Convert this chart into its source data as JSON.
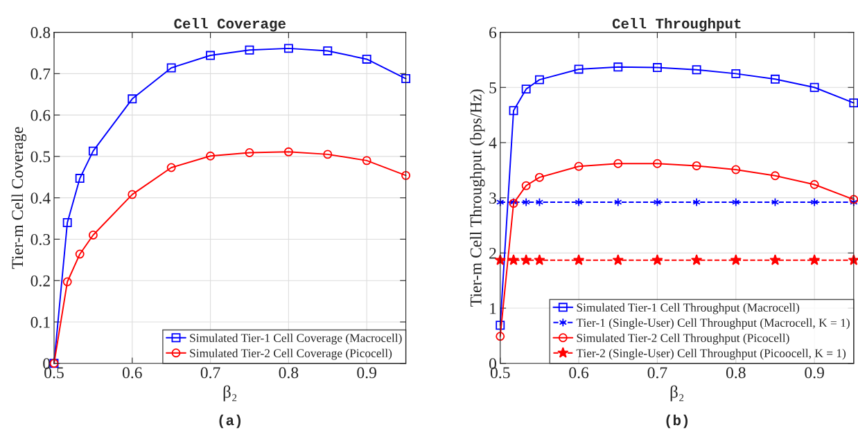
{
  "chart_data": [
    {
      "type": "line",
      "title": "Cell Coverage",
      "xlabel": "β₂",
      "ylabel": "Tier-m Cell Coverage",
      "annotations": [
        "(a)"
      ],
      "x": [
        0.5,
        0.517,
        0.533,
        0.55,
        0.6,
        0.65,
        0.7,
        0.75,
        0.8,
        0.85,
        0.9,
        0.95
      ],
      "series": [
        {
          "name": "Simulated Tier-1 Cell Coverage (Macrocell)",
          "color": "#0000ff",
          "marker": "square",
          "line_style": "solid",
          "values": [
            0,
            0.34,
            0.447,
            0.513,
            0.639,
            0.714,
            0.744,
            0.757,
            0.761,
            0.755,
            0.735,
            0.688
          ]
        },
        {
          "name": "Simulated Tier-2 Cell Coverage (Picocell)",
          "color": "#ff0000",
          "marker": "circle",
          "line_style": "solid",
          "values": [
            0,
            0.197,
            0.264,
            0.31,
            0.408,
            0.473,
            0.501,
            0.509,
            0.511,
            0.505,
            0.49,
            0.454
          ]
        }
      ],
      "xlim": [
        0.5,
        0.95
      ],
      "xticks": [
        0.5,
        0.6,
        0.7,
        0.8,
        0.9
      ],
      "ylim": [
        0,
        0.8
      ],
      "yticks": [
        0,
        0.1,
        0.2,
        0.3,
        0.4,
        0.5,
        0.6,
        0.7,
        0.8
      ],
      "grid": true,
      "legend": "bottom right"
    },
    {
      "type": "line",
      "title": "Cell Throughput",
      "xlabel": "β₂",
      "ylabel": "Tier-m Cell Throughput (bps/Hz)",
      "annotations": [
        "(b)"
      ],
      "x": [
        0.5,
        0.517,
        0.533,
        0.55,
        0.6,
        0.65,
        0.7,
        0.75,
        0.8,
        0.85,
        0.9,
        0.95
      ],
      "series": [
        {
          "name": "Simulated Tier-1 Cell Throughput (Macrocell)",
          "color": "#0000ff",
          "marker": "square",
          "line_style": "solid",
          "values": [
            0.69,
            4.58,
            4.97,
            5.14,
            5.33,
            5.37,
            5.36,
            5.32,
            5.25,
            5.15,
            5.0,
            4.72
          ]
        },
        {
          "name": "Tier-1 (Single-User) Cell Throughput (Macrocell, K = 1)",
          "color": "#0000ff",
          "marker": "cross",
          "line_style": "dashed",
          "values": [
            2.92,
            2.92,
            2.92,
            2.92,
            2.92,
            2.92,
            2.92,
            2.92,
            2.92,
            2.92,
            2.92,
            2.92
          ]
        },
        {
          "name": "Simulated Tier-2 Cell Throughput (Picocell)",
          "color": "#ff0000",
          "marker": "circle",
          "line_style": "solid",
          "values": [
            0.49,
            2.9,
            3.22,
            3.37,
            3.57,
            3.62,
            3.62,
            3.58,
            3.51,
            3.4,
            3.24,
            2.97
          ]
        },
        {
          "name": "Tier-2 (Single-User) Cell Throughput (Picoocell, K = 1)",
          "color": "#ff0000",
          "marker": "star",
          "line_style": "dashed",
          "values": [
            1.87,
            1.87,
            1.87,
            1.87,
            1.87,
            1.87,
            1.87,
            1.87,
            1.87,
            1.87,
            1.87,
            1.87
          ]
        }
      ],
      "xlim": [
        0.5,
        0.95
      ],
      "xticks": [
        0.5,
        0.6,
        0.7,
        0.8,
        0.9
      ],
      "ylim": [
        0,
        6
      ],
      "yticks": [
        0,
        1,
        2,
        3,
        4,
        5,
        6
      ],
      "grid": true,
      "legend": "bottom right"
    }
  ]
}
